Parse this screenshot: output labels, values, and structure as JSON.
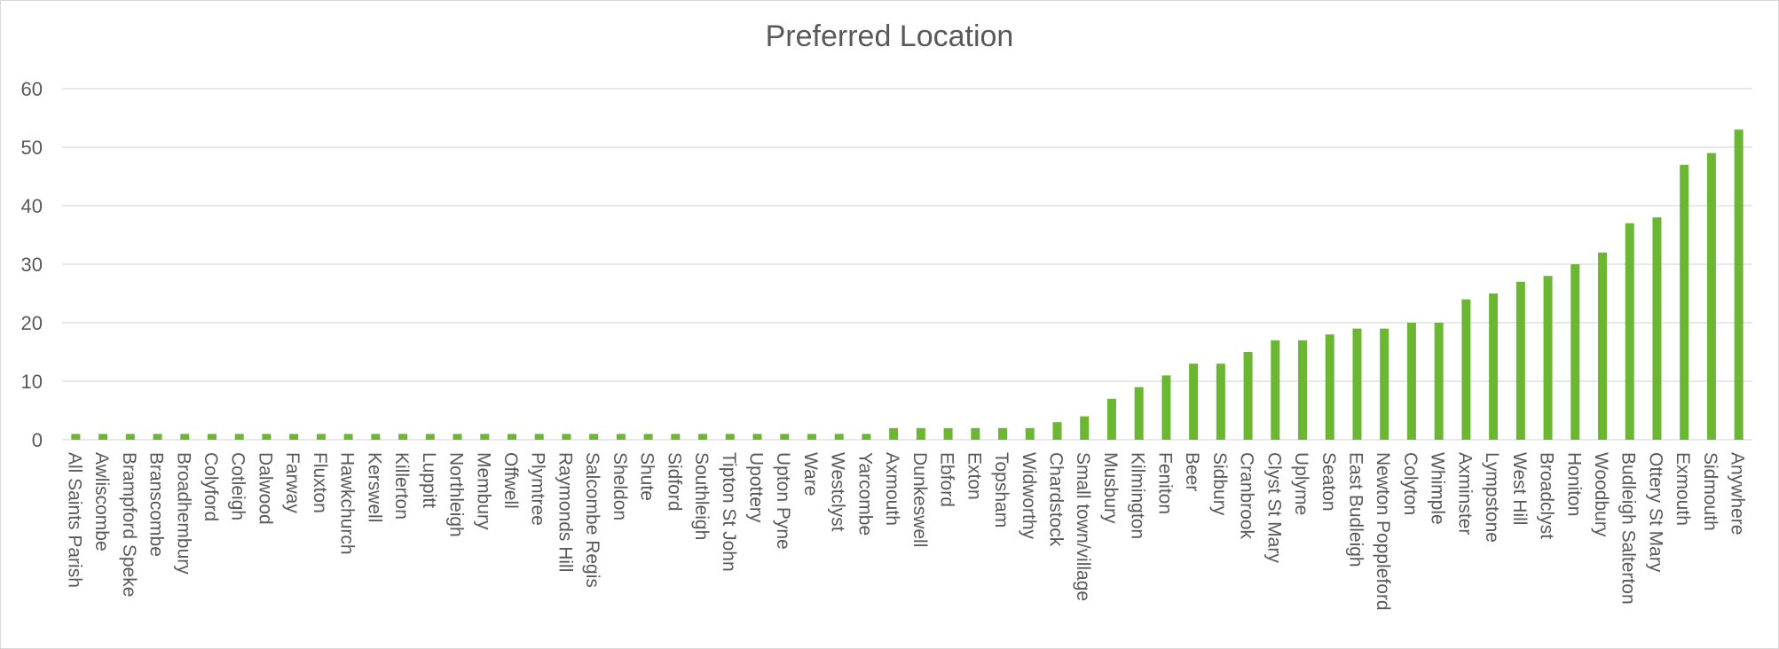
{
  "chart_data": {
    "type": "bar",
    "title": "Preferred Location",
    "xlabel": "",
    "ylabel": "",
    "ylim": [
      0,
      60
    ],
    "yticks": [
      0,
      10,
      20,
      30,
      40,
      50,
      60
    ],
    "grid": true,
    "legend": "none",
    "bar_color": "#6bb632",
    "grid_color": "#d9d9d9",
    "text_color": "#595959",
    "categories": [
      "All Saints Parish",
      "Awliscombe",
      "Brampford Speke",
      "Branscombe",
      "Broadhembury",
      "Colyford",
      "Cotleigh",
      "Dalwood",
      "Farway",
      "Fluxton",
      "Hawkchurch",
      "Kerswell",
      "Killerton",
      "Luppitt",
      "Northleigh",
      "Membury",
      "Offwell",
      "Plymtree",
      "Raymonds Hill",
      "Salcombe Regis",
      "Sheldon",
      "Shute",
      "Sidford",
      "Southleigh",
      "Tipton St John",
      "Upottery",
      "Upton Pyne",
      "Ware",
      "Westclyst",
      "Yarcombe",
      "Axmouth",
      "Dunkeswell",
      "Ebford",
      "Exton",
      "Topsham",
      "Widworthy",
      "Chardstock",
      "Small town/village",
      "Musbury",
      "Kilmington",
      "Feniton",
      "Beer",
      "Sidbury",
      "Cranbrook",
      "Clyst St Mary",
      "Uplyme",
      "Seaton",
      "East Budleigh",
      "Newton Poppleford",
      "Colyton",
      "Whimple",
      "Axminster",
      "Lympstone",
      "West Hill",
      "Broadclyst",
      "Honiton",
      "Woodbury",
      "Budleigh Salterton",
      "Ottery St Mary",
      "Exmouth",
      "Sidmouth",
      "Anywhere"
    ],
    "values": [
      1,
      1,
      1,
      1,
      1,
      1,
      1,
      1,
      1,
      1,
      1,
      1,
      1,
      1,
      1,
      1,
      1,
      1,
      1,
      1,
      1,
      1,
      1,
      1,
      1,
      1,
      1,
      1,
      1,
      1,
      2,
      2,
      2,
      2,
      2,
      2,
      3,
      4,
      7,
      9,
      11,
      13,
      13,
      15,
      17,
      17,
      18,
      19,
      19,
      20,
      20,
      24,
      25,
      27,
      28,
      30,
      32,
      37,
      38,
      47,
      49,
      53
    ]
  }
}
